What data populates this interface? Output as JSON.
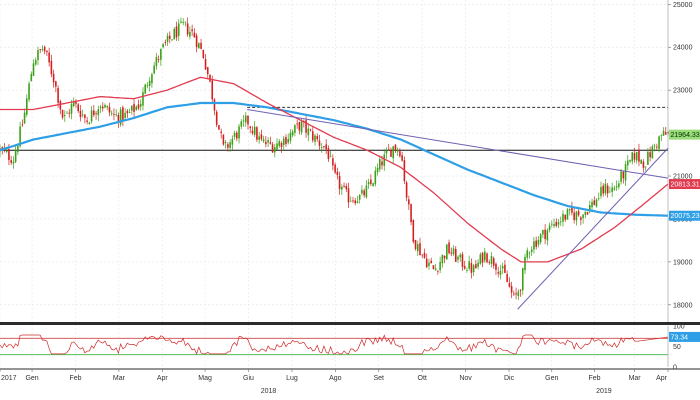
{
  "colors": {
    "up": "#3aa017",
    "down": "#d2201f",
    "ma_short": "#e23a4f",
    "ma_long": "#2e9fe6",
    "trend": "#6f5fb3",
    "rsi": "#d02b2b",
    "rsi_upper": "#d04545",
    "rsi_lower": "#3fb23f",
    "grid": "#e6e6e6",
    "last_price_bg": "#9bdc7a",
    "ma_short_bg": "#e23a4f",
    "ma_long_bg": "#2e9fe6"
  },
  "chart_data": {
    "type": "candlestick",
    "ylim": [
      17600,
      25100
    ],
    "yticks": [
      18000,
      19000,
      20000,
      21000,
      22000,
      23000,
      24000,
      25000
    ],
    "rsi_ylim": [
      0,
      100
    ],
    "rsi_yticks": [
      0,
      50,
      100
    ],
    "rsi_bands": [
      70,
      30
    ],
    "x_month_labels": [
      {
        "label": "2017",
        "t": 0
      },
      {
        "label": "Gen",
        "t": 0.048
      },
      {
        "label": "Feb",
        "t": 0.113
      },
      {
        "label": "Mar",
        "t": 0.178
      },
      {
        "label": "Apr",
        "t": 0.243
      },
      {
        "label": "Mag",
        "t": 0.307
      },
      {
        "label": "Giu",
        "t": 0.372
      },
      {
        "label": "Lug",
        "t": 0.437
      },
      {
        "label": "Ago",
        "t": 0.502
      },
      {
        "label": "Set",
        "t": 0.567
      },
      {
        "label": "Ott",
        "t": 0.632
      },
      {
        "label": "Nov",
        "t": 0.697
      },
      {
        "label": "Dic",
        "t": 0.762
      },
      {
        "label": "Gen",
        "t": 0.826
      },
      {
        "label": "Feb",
        "t": 0.89
      },
      {
        "label": "Mar",
        "t": 0.95
      },
      {
        "label": "Apr",
        "t": 1.0
      }
    ],
    "x_year_labels": [
      {
        "label": "2018",
        "t": 0.402
      },
      {
        "label": "2019",
        "t": 0.904
      }
    ],
    "price_keypoints": [
      [
        0,
        21600
      ],
      [
        0.02,
        21400
      ],
      [
        0.035,
        22300
      ],
      [
        0.05,
        23700
      ],
      [
        0.065,
        24000
      ],
      [
        0.08,
        23300
      ],
      [
        0.095,
        22300
      ],
      [
        0.11,
        22700
      ],
      [
        0.13,
        22300
      ],
      [
        0.15,
        22700
      ],
      [
        0.17,
        22400
      ],
      [
        0.19,
        22400
      ],
      [
        0.21,
        22700
      ],
      [
        0.225,
        23400
      ],
      [
        0.245,
        24000
      ],
      [
        0.26,
        24300
      ],
      [
        0.275,
        24500
      ],
      [
        0.29,
        24300
      ],
      [
        0.305,
        23800
      ],
      [
        0.315,
        23100
      ],
      [
        0.325,
        22300
      ],
      [
        0.335,
        21600
      ],
      [
        0.35,
        21900
      ],
      [
        0.37,
        22300
      ],
      [
        0.39,
        21800
      ],
      [
        0.41,
        21700
      ],
      [
        0.43,
        21900
      ],
      [
        0.45,
        22200
      ],
      [
        0.47,
        21900
      ],
      [
        0.49,
        21600
      ],
      [
        0.5,
        21000
      ],
      [
        0.52,
        20500
      ],
      [
        0.54,
        20500
      ],
      [
        0.555,
        20800
      ],
      [
        0.57,
        21300
      ],
      [
        0.59,
        21700
      ],
      [
        0.6,
        21600
      ],
      [
        0.61,
        20400
      ],
      [
        0.62,
        19500
      ],
      [
        0.635,
        19100
      ],
      [
        0.65,
        18800
      ],
      [
        0.67,
        19300
      ],
      [
        0.69,
        19000
      ],
      [
        0.71,
        18800
      ],
      [
        0.725,
        19200
      ],
      [
        0.74,
        19000
      ],
      [
        0.755,
        18700
      ],
      [
        0.77,
        18100
      ],
      [
        0.78,
        18500
      ],
      [
        0.79,
        19300
      ],
      [
        0.81,
        19600
      ],
      [
        0.83,
        19900
      ],
      [
        0.85,
        20100
      ],
      [
        0.87,
        20100
      ],
      [
        0.89,
        20400
      ],
      [
        0.905,
        20700
      ],
      [
        0.92,
        20700
      ],
      [
        0.935,
        21100
      ],
      [
        0.95,
        21500
      ],
      [
        0.965,
        21300
      ],
      [
        0.98,
        21700
      ],
      [
        0.99,
        21950
      ],
      [
        1.0,
        21964
      ]
    ],
    "ma_short": [
      [
        0,
        22550
      ],
      [
        0.05,
        22550
      ],
      [
        0.1,
        22700
      ],
      [
        0.15,
        22850
      ],
      [
        0.2,
        22800
      ],
      [
        0.25,
        23000
      ],
      [
        0.3,
        23300
      ],
      [
        0.35,
        23150
      ],
      [
        0.4,
        22700
      ],
      [
        0.45,
        22300
      ],
      [
        0.5,
        21900
      ],
      [
        0.55,
        21600
      ],
      [
        0.6,
        21200
      ],
      [
        0.65,
        20600
      ],
      [
        0.7,
        19900
      ],
      [
        0.75,
        19300
      ],
      [
        0.78,
        19000
      ],
      [
        0.82,
        19000
      ],
      [
        0.87,
        19300
      ],
      [
        0.92,
        19800
      ],
      [
        0.96,
        20300
      ],
      [
        1.0,
        20813
      ]
    ],
    "ma_long": [
      [
        0,
        21600
      ],
      [
        0.05,
        21850
      ],
      [
        0.1,
        22000
      ],
      [
        0.15,
        22150
      ],
      [
        0.2,
        22350
      ],
      [
        0.25,
        22600
      ],
      [
        0.3,
        22700
      ],
      [
        0.35,
        22700
      ],
      [
        0.4,
        22600
      ],
      [
        0.45,
        22450
      ],
      [
        0.5,
        22300
      ],
      [
        0.55,
        22100
      ],
      [
        0.6,
        21850
      ],
      [
        0.65,
        21500
      ],
      [
        0.7,
        21150
      ],
      [
        0.75,
        20850
      ],
      [
        0.8,
        20550
      ],
      [
        0.85,
        20300
      ],
      [
        0.9,
        20150
      ],
      [
        0.95,
        20100
      ],
      [
        1.0,
        20075
      ]
    ],
    "horizontal_line": {
      "value": 21600,
      "t_start": 0,
      "t_end": 1
    },
    "dashed_line": {
      "value": 22600,
      "t_start": 0.37,
      "t_end": 1
    },
    "trendlines": [
      {
        "from": [
          0.37,
          22550
        ],
        "to": [
          1.0,
          20950
        ]
      },
      {
        "from": [
          0.775,
          17900
        ],
        "to": [
          1.0,
          21650
        ]
      }
    ],
    "rsi_level_last": 73.34,
    "tags": {
      "last_price": "21964.3398",
      "ma_short": "20813.3125",
      "ma_long": "20075.2324",
      "rsi": "73.34"
    },
    "axis_labels": {
      "y": [
        "18000",
        "19000",
        "20000",
        "21000",
        "22000",
        "23000",
        "24000",
        "25000"
      ],
      "rsi": [
        "0",
        "50",
        "100"
      ]
    }
  }
}
